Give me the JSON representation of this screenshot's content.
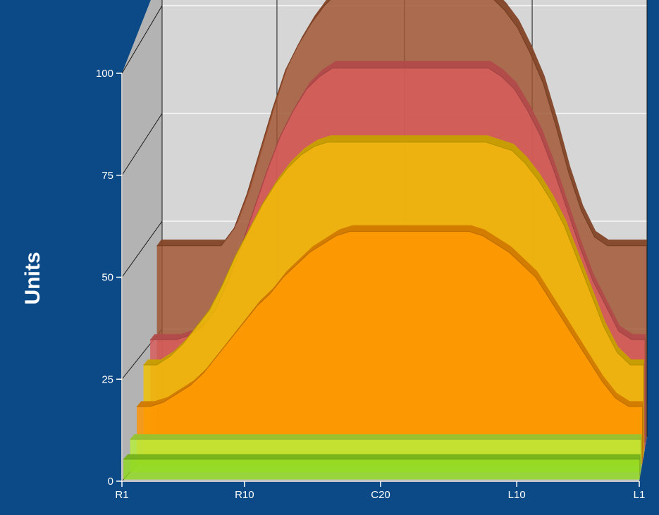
{
  "chart_data": {
    "type": "area",
    "ylabel": "Units",
    "ylim": [
      0,
      100
    ],
    "yticks": [
      "0",
      "25",
      "50",
      "75",
      "100"
    ],
    "x": [
      1,
      2,
      3,
      4,
      5,
      6,
      7,
      8,
      9,
      10,
      11,
      12,
      13,
      14,
      15,
      16,
      17,
      18,
      19,
      20,
      21,
      22,
      23,
      24,
      25,
      26,
      27,
      28,
      29,
      30,
      31,
      32,
      33,
      34,
      35,
      36,
      37,
      38,
      39
    ],
    "xticks": [
      {
        "label": "R1",
        "x": 1
      },
      {
        "label": "R10",
        "x": 10
      },
      {
        "label": "C20",
        "x": 20
      },
      {
        "label": "L10",
        "x": 30
      },
      {
        "label": "L1",
        "x": 39
      }
    ],
    "grid": true,
    "series": [
      {
        "color": "#8fd81f",
        "values": [
          5,
          5,
          5,
          5,
          5,
          5,
          5,
          5,
          5,
          5,
          5,
          5,
          5,
          5,
          5,
          5,
          5,
          5,
          5,
          5,
          5,
          5,
          5,
          5,
          5,
          5,
          5,
          5,
          5,
          5,
          5,
          5,
          5,
          5,
          5,
          5,
          5,
          5,
          5
        ]
      },
      {
        "color": "#b7ef3a",
        "values": [
          8,
          8,
          8,
          8,
          8,
          8,
          8,
          8,
          8,
          8,
          8,
          8,
          8,
          8,
          8,
          8,
          8,
          8,
          8,
          8,
          8,
          8,
          8,
          8,
          8,
          8,
          8,
          8,
          8,
          8,
          8,
          8,
          8,
          8,
          8,
          8,
          8,
          8,
          8
        ]
      },
      {
        "color": "#ff9400",
        "values": [
          14,
          14,
          15,
          17,
          19,
          22,
          26,
          30,
          34,
          38,
          41,
          45,
          48,
          51,
          53,
          55,
          56,
          56,
          56,
          56,
          56,
          56,
          56,
          56,
          56,
          56,
          55,
          53,
          51,
          48,
          45,
          40,
          35,
          30,
          25,
          20,
          16,
          14,
          14
        ]
      },
      {
        "color": "#f3c300",
        "values": [
          22,
          22,
          24,
          27,
          31,
          35,
          41,
          48,
          54,
          60,
          65,
          69,
          72,
          74,
          75,
          75,
          75,
          75,
          75,
          75,
          75,
          75,
          75,
          75,
          75,
          75,
          75,
          74,
          73,
          70,
          66,
          61,
          55,
          47,
          39,
          31,
          25,
          22,
          22
        ]
      },
      {
        "color": "#d95b5b",
        "values": [
          26,
          26,
          26,
          27,
          29,
          33,
          40,
          48,
          57,
          66,
          74,
          80,
          85,
          88,
          90,
          90,
          90,
          90,
          90,
          90,
          90,
          90,
          90,
          90,
          90,
          90,
          90,
          88,
          85,
          80,
          74,
          66,
          57,
          48,
          40,
          34,
          28,
          26,
          26
        ]
      },
      {
        "color": "#a0532f",
        "values": [
          46,
          46,
          46,
          46,
          46,
          46,
          50,
          58,
          68,
          78,
          87,
          93,
          98,
          102,
          105,
          105,
          105,
          105,
          105,
          105,
          105,
          105,
          105,
          105,
          105,
          105,
          104,
          101,
          97,
          91,
          84,
          74,
          63,
          54,
          48,
          46,
          46,
          46,
          46
        ]
      }
    ]
  }
}
